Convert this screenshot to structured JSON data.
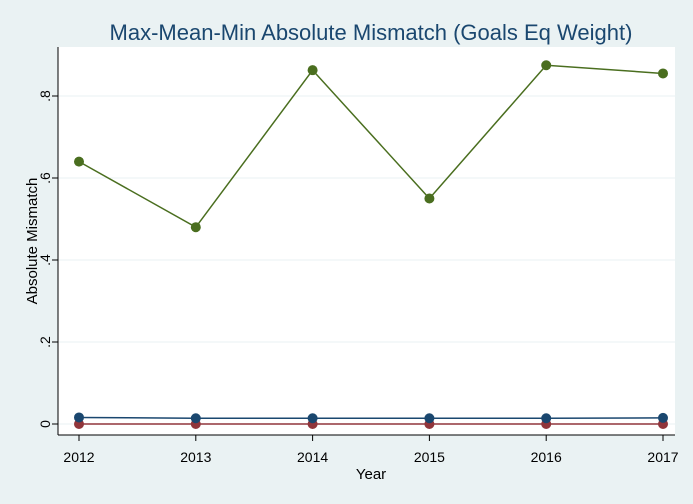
{
  "chart_data": {
    "type": "line",
    "title": "Max-Mean-Min Absolute Mismatch (Goals Eq Weight)",
    "xlabel": "Year",
    "ylabel": "Absolute Mismatch",
    "x": [
      2012,
      2013,
      2014,
      2015,
      2016,
      2017
    ],
    "x_tick_labels": [
      "2012",
      "2013",
      "2014",
      "2015",
      "2016",
      "2017"
    ],
    "y_ticks": [
      0,
      0.2,
      0.4,
      0.6,
      0.8
    ],
    "y_tick_labels": [
      "0",
      ".2",
      ".4",
      ".6",
      ".8"
    ],
    "xlim": [
      2012,
      2017
    ],
    "ylim": [
      0,
      0.9
    ],
    "grid": true,
    "legend": "none",
    "series": [
      {
        "values": [
          0.64,
          0.48,
          0.863,
          0.55,
          0.875,
          0.855
        ],
        "color": "#4a6e1f"
      },
      {
        "values": [
          0.016,
          0.014,
          0.014,
          0.014,
          0.014,
          0.015
        ],
        "color": "#1a476f"
      },
      {
        "values": [
          0.0,
          0.0,
          0.0,
          0.0,
          0.0,
          0.0
        ],
        "color": "#90353b"
      }
    ]
  }
}
